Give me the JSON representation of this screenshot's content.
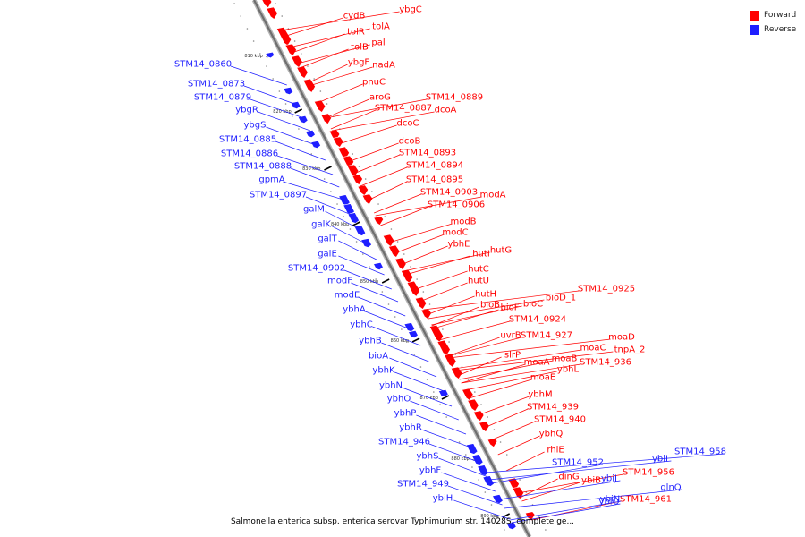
{
  "colors": {
    "forward": "#ff0000",
    "reverse": "#1f1fff",
    "backbone": "#999999",
    "tick": "#000000"
  },
  "legend": {
    "forward_label": "Forward",
    "reverse_label": "Reverse"
  },
  "caption": "Salmonella enterica subsp. enterica serovar Typhimurium str. 14028S, complete ge...",
  "ticks": [
    "810 kbp",
    "820 kbp",
    "830 kbp",
    "840 kbp",
    "850 kbp",
    "860 kbp",
    "870 kbp",
    "880 kbp",
    "890 kbp"
  ],
  "forward_genes": [
    "cydB",
    "ybgC",
    "tolR",
    "tolA",
    "tolB",
    "pal",
    "ybgF",
    "nadA",
    "pnuC",
    "aroG",
    "STM14_0889",
    "STM14_0887",
    "dcoA",
    "dcoC",
    "dcoB",
    "STM14_0893",
    "STM14_0894",
    "STM14_0895",
    "STM14_0903",
    "modA",
    "STM14_0906",
    "modB",
    "modC",
    "ybhE",
    "hutI",
    "hutG",
    "hutC",
    "hutU",
    "hutH",
    "bioB",
    "bioF",
    "bioC",
    "bioD_1",
    "STM14_0925",
    "STM14_0924",
    "uvrB",
    "STM14_927",
    "moaD",
    "moaC",
    "tnpA_2",
    "slrP",
    "moaA",
    "moaB",
    "ybhL",
    "STM14_936",
    "moaE",
    "ybhM",
    "STM14_939",
    "STM14_940",
    "ybhQ",
    "rhlE",
    "dinG",
    "ybiB",
    "STM14_956",
    "STM14_961"
  ],
  "reverse_genes": [
    "STM14_0860",
    "STM14_0873",
    "STM14_0879",
    "ybgR",
    "ybgS",
    "STM14_0885",
    "STM14_0886",
    "STM14_0888",
    "gpmA",
    "STM14_0897",
    "galM",
    "galK",
    "galT",
    "galE",
    "STM14_0902",
    "modF",
    "modE",
    "ybhA",
    "ybhC",
    "ybhB",
    "bioA",
    "ybhK",
    "ybhN",
    "ybhO",
    "ybhP",
    "ybhR",
    "STM14_946",
    "ybhS",
    "ybhF",
    "STM14_949",
    "ybiH",
    "STM14_952",
    "ybiJ",
    "ybiI",
    "STM14_958",
    "ybiN",
    "glnQ",
    "ybiO"
  ]
}
